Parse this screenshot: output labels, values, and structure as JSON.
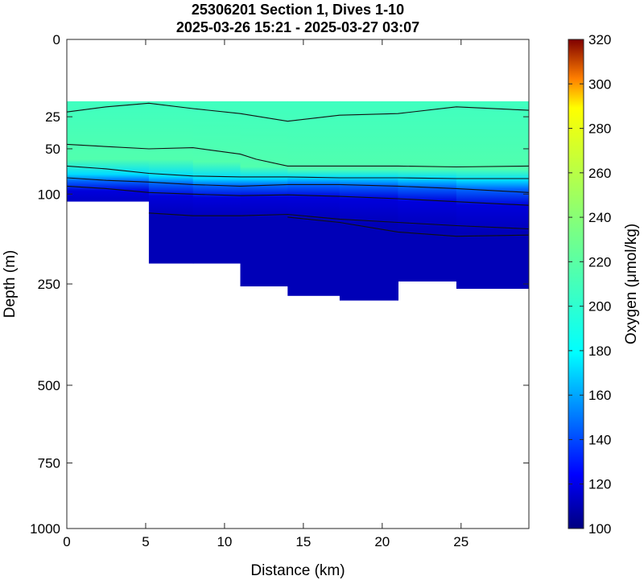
{
  "chart_data": {
    "type": "heatmap",
    "title": "25306201 Section 1, Dives 1-10",
    "subtitle": "2025-03-26 15:21 - 2025-03-27 03:07",
    "xlabel": "Distance (km)",
    "ylabel": "Depth (m)",
    "colorbar_label": "Oxygen (μmol/kg)",
    "xlim": [
      0,
      29.3
    ],
    "ylim": [
      0,
      1000
    ],
    "x_ticks": [
      0,
      5,
      10,
      15,
      20,
      25
    ],
    "y_ticks": [
      0,
      25,
      50,
      100,
      250,
      500,
      750,
      1000
    ],
    "y_scale": "square-root (depth axis)",
    "colorbar_range": [
      100,
      320
    ],
    "colorbar_ticks": [
      100,
      120,
      140,
      160,
      180,
      200,
      220,
      240,
      260,
      280,
      300,
      320
    ],
    "colormap": "jet",
    "grid": false,
    "stations_km": [
      0,
      5.2,
      8,
      11,
      14,
      17.3,
      21,
      24.7,
      29.3
    ],
    "data_top_depth_m": 16,
    "bottom_depth_m": [
      110,
      210,
      210,
      255,
      275,
      285,
      245,
      260,
      265
    ],
    "oxygen_layers": [
      {
        "depth_m": [
          16,
          16,
          16,
          16,
          16,
          16,
          16,
          16,
          16
        ],
        "oxygen": 196
      },
      {
        "depth_m": [
          60,
          60,
          60,
          65,
          70,
          70,
          70,
          70,
          70
        ],
        "oxygen": 200
      },
      {
        "depth_m": [
          75,
          77,
          80,
          82,
          80,
          80,
          80,
          82,
          84
        ],
        "oxygen": 175
      },
      {
        "depth_m": [
          82,
          85,
          88,
          90,
          88,
          88,
          90,
          92,
          95
        ],
        "oxygen": 150
      },
      {
        "depth_m": [
          92,
          100,
          105,
          105,
          103,
          105,
          108,
          112,
          118
        ],
        "oxygen": 120
      },
      {
        "depth_m": [
          110,
          130,
          135,
          135,
          135,
          140,
          150,
          155,
          160
        ],
        "oxygen": 112
      }
    ],
    "contour_lines": [
      {
        "x": [
          0,
          2.5,
          5.2,
          8,
          11,
          14,
          17.3,
          21,
          24.7,
          29.3
        ],
        "depth_m": [
          22,
          19,
          17,
          20,
          23,
          28,
          24,
          23,
          19,
          21
        ]
      },
      {
        "x": [
          0,
          2.5,
          5.2,
          8,
          11,
          12,
          14,
          17.3,
          21,
          24.7,
          29.3
        ],
        "depth_m": [
          46,
          48,
          50,
          49,
          55,
          60,
          67,
          67,
          67,
          68,
          67
        ]
      },
      {
        "x": [
          0,
          2.5,
          5.2,
          8,
          11,
          14,
          17.3,
          21,
          24.7,
          29.3
        ],
        "depth_m": [
          67,
          70,
          75,
          78,
          79,
          79,
          80,
          80,
          81,
          81
        ]
      },
      {
        "x": [
          0,
          2.5,
          5.2,
          8,
          11,
          14,
          17.3,
          21,
          24.7,
          29.3
        ],
        "depth_m": [
          80,
          83,
          85,
          88,
          90,
          88,
          88,
          90,
          93,
          98
        ]
      },
      {
        "x": [
          0,
          2.5,
          5.2,
          8,
          11,
          14,
          17.3,
          21,
          24.7,
          29.3
        ],
        "depth_m": [
          90,
          93,
          98,
          100,
          102,
          101,
          103,
          106,
          110,
          115
        ]
      },
      {
        "x": [
          5.2,
          8,
          11,
          14,
          17.3,
          21,
          24.7,
          29.3
        ],
        "depth_m": [
          126,
          130,
          130,
          128,
          135,
          140,
          145,
          150
        ]
      },
      {
        "x": [
          14,
          17.3,
          21,
          24.7,
          29.3
        ],
        "depth_m": [
          132,
          140,
          155,
          162,
          160
        ]
      }
    ]
  }
}
